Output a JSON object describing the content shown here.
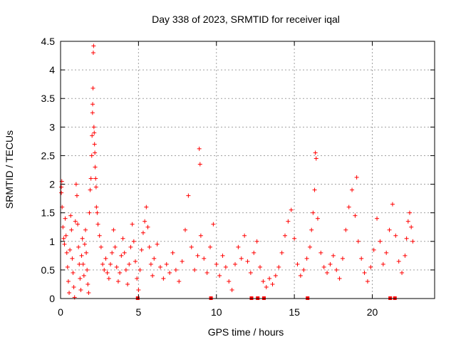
{
  "chart_data": {
    "type": "scatter",
    "title": "Day 338 of 2023, SRMTID for receiver iqal",
    "xlabel": "GPS time / hours",
    "ylabel": "SRMTID / TECUs",
    "xlim": [
      0,
      24
    ],
    "ylim": [
      0,
      4.5
    ],
    "xticks": [
      "0",
      "5",
      "10",
      "15",
      "20"
    ],
    "xtick_values": [
      0,
      5,
      10,
      15,
      20
    ],
    "yticks": [
      "0",
      "0.5",
      "1",
      "1.5",
      "2",
      "2.5",
      "3",
      "3.5",
      "4",
      "4.5"
    ],
    "ytick_values": [
      0,
      0.5,
      1,
      1.5,
      2,
      2.5,
      3,
      3.5,
      4,
      4.5
    ],
    "grid": true,
    "marker": "+",
    "color": "#ff0000",
    "series": [
      {
        "name": "SRMTID",
        "points": [
          [
            0.05,
            1.95
          ],
          [
            0.05,
            1.85
          ],
          [
            0.08,
            2.05
          ],
          [
            0.1,
            1.6
          ],
          [
            0.15,
            1.25
          ],
          [
            0.2,
            1.05
          ],
          [
            0.25,
            0.95
          ],
          [
            0.3,
            1.4
          ],
          [
            0.35,
            1.1
          ],
          [
            0.4,
            0.8
          ],
          [
            0.45,
            0.55
          ],
          [
            0.5,
            0.3
          ],
          [
            0.55,
            0.1
          ],
          [
            0.6,
            0.85
          ],
          [
            0.65,
            1.45
          ],
          [
            0.7,
            1.2
          ],
          [
            0.75,
            0.7
          ],
          [
            0.8,
            0.45
          ],
          [
            0.85,
            0.2
          ],
          [
            0.9,
            0.02
          ],
          [
            0.95,
            1.35
          ],
          [
            1.0,
            2.0
          ],
          [
            1.05,
            1.8
          ],
          [
            1.1,
            1.3
          ],
          [
            1.15,
            0.9
          ],
          [
            1.2,
            0.6
          ],
          [
            1.25,
            0.35
          ],
          [
            1.3,
            0.15
          ],
          [
            1.35,
            0.75
          ],
          [
            1.4,
            1.05
          ],
          [
            1.45,
            0.6
          ],
          [
            1.5,
            0.4
          ],
          [
            1.55,
            0.95
          ],
          [
            1.6,
            1.2
          ],
          [
            1.65,
            0.8
          ],
          [
            1.7,
            0.5
          ],
          [
            1.75,
            0.25
          ],
          [
            1.8,
            0.1
          ],
          [
            1.85,
            1.5
          ],
          [
            1.9,
            1.9
          ],
          [
            1.95,
            2.1
          ],
          [
            2.0,
            2.5
          ],
          [
            2.02,
            2.85
          ],
          [
            2.05,
            3.25
          ],
          [
            2.06,
            3.4
          ],
          [
            2.08,
            3.68
          ],
          [
            2.1,
            4.3
          ],
          [
            2.12,
            4.42
          ],
          [
            2.14,
            3.0
          ],
          [
            2.16,
            2.9
          ],
          [
            2.18,
            2.7
          ],
          [
            2.2,
            2.55
          ],
          [
            2.22,
            2.3
          ],
          [
            2.25,
            2.1
          ],
          [
            2.28,
            1.95
          ],
          [
            2.3,
            1.6
          ],
          [
            2.35,
            1.5
          ],
          [
            2.4,
            1.3
          ],
          [
            2.5,
            1.1
          ],
          [
            2.6,
            0.9
          ],
          [
            2.7,
            0.6
          ],
          [
            2.8,
            0.5
          ],
          [
            2.9,
            0.7
          ],
          [
            3.0,
            0.45
          ],
          [
            3.1,
            0.35
          ],
          [
            3.2,
            0.6
          ],
          [
            3.3,
            0.8
          ],
          [
            3.4,
            1.2
          ],
          [
            3.5,
            0.9
          ],
          [
            3.6,
            0.55
          ],
          [
            3.7,
            0.3
          ],
          [
            3.8,
            0.45
          ],
          [
            3.9,
            0.75
          ],
          [
            4.0,
            1.05
          ],
          [
            4.1,
            0.8
          ],
          [
            4.2,
            0.5
          ],
          [
            4.3,
            0.25
          ],
          [
            4.4,
            0.6
          ],
          [
            4.5,
            0.9
          ],
          [
            4.6,
            1.3
          ],
          [
            4.7,
            1.0
          ],
          [
            4.8,
            0.65
          ],
          [
            4.9,
            0.35
          ],
          [
            5.0,
            0.15
          ],
          [
            5.1,
            0.5
          ],
          [
            5.2,
            0.85
          ],
          [
            5.3,
            1.15
          ],
          [
            5.4,
            1.35
          ],
          [
            5.5,
            1.6
          ],
          [
            5.6,
            1.25
          ],
          [
            5.7,
            0.9
          ],
          [
            5.8,
            0.6
          ],
          [
            5.9,
            0.4
          ],
          [
            6.0,
            0.7
          ],
          [
            6.2,
            0.95
          ],
          [
            6.4,
            0.55
          ],
          [
            6.6,
            0.35
          ],
          [
            6.8,
            0.6
          ],
          [
            7.0,
            0.45
          ],
          [
            7.2,
            0.8
          ],
          [
            7.4,
            0.5
          ],
          [
            7.6,
            0.3
          ],
          [
            7.8,
            0.65
          ],
          [
            8.0,
            1.2
          ],
          [
            8.2,
            1.8
          ],
          [
            8.4,
            0.9
          ],
          [
            8.6,
            0.5
          ],
          [
            8.8,
            0.75
          ],
          [
            8.9,
            2.62
          ],
          [
            8.95,
            2.35
          ],
          [
            9.0,
            1.1
          ],
          [
            9.2,
            0.7
          ],
          [
            9.4,
            0.45
          ],
          [
            9.6,
            0.9
          ],
          [
            9.8,
            1.3
          ],
          [
            10.0,
            0.6
          ],
          [
            10.2,
            0.4
          ],
          [
            10.4,
            0.75
          ],
          [
            10.6,
            0.55
          ],
          [
            10.8,
            0.3
          ],
          [
            11.0,
            0.15
          ],
          [
            11.2,
            0.6
          ],
          [
            11.4,
            0.9
          ],
          [
            11.6,
            0.7
          ],
          [
            11.8,
            1.1
          ],
          [
            12.0,
            0.65
          ],
          [
            12.2,
            0.45
          ],
          [
            12.4,
            0.8
          ],
          [
            12.6,
            1.0
          ],
          [
            12.8,
            0.55
          ],
          [
            13.0,
            0.3
          ],
          [
            13.2,
            0.2
          ],
          [
            13.4,
            0.35
          ],
          [
            13.6,
            0.25
          ],
          [
            13.8,
            0.4
          ],
          [
            14.0,
            0.55
          ],
          [
            14.2,
            0.8
          ],
          [
            14.4,
            1.1
          ],
          [
            14.6,
            1.35
          ],
          [
            14.8,
            1.55
          ],
          [
            15.0,
            1.05
          ],
          [
            15.2,
            0.6
          ],
          [
            15.4,
            0.4
          ],
          [
            15.6,
            0.5
          ],
          [
            15.8,
            0.7
          ],
          [
            16.0,
            0.9
          ],
          [
            16.1,
            1.2
          ],
          [
            16.2,
            1.5
          ],
          [
            16.3,
            1.9
          ],
          [
            16.35,
            2.55
          ],
          [
            16.4,
            2.45
          ],
          [
            16.5,
            1.4
          ],
          [
            16.7,
            0.8
          ],
          [
            16.9,
            0.55
          ],
          [
            17.1,
            0.45
          ],
          [
            17.3,
            0.6
          ],
          [
            17.5,
            0.75
          ],
          [
            17.7,
            0.5
          ],
          [
            17.9,
            0.35
          ],
          [
            18.1,
            0.7
          ],
          [
            18.3,
            1.2
          ],
          [
            18.5,
            1.6
          ],
          [
            18.7,
            1.9
          ],
          [
            18.9,
            1.45
          ],
          [
            19.0,
            2.12
          ],
          [
            19.1,
            1.0
          ],
          [
            19.3,
            0.7
          ],
          [
            19.5,
            0.45
          ],
          [
            19.7,
            0.3
          ],
          [
            19.9,
            0.55
          ],
          [
            20.1,
            0.85
          ],
          [
            20.3,
            1.4
          ],
          [
            20.5,
            1.0
          ],
          [
            20.7,
            0.6
          ],
          [
            20.9,
            0.8
          ],
          [
            21.1,
            1.2
          ],
          [
            21.3,
            1.65
          ],
          [
            21.5,
            1.1
          ],
          [
            21.7,
            0.65
          ],
          [
            21.9,
            0.45
          ],
          [
            22.1,
            0.75
          ],
          [
            22.2,
            1.05
          ],
          [
            22.3,
            1.35
          ],
          [
            22.4,
            1.5
          ],
          [
            22.5,
            1.25
          ],
          [
            22.6,
            1.0
          ]
        ],
        "zero_gaps": [
          4.95,
          9.65,
          12.25,
          12.65,
          13.05,
          15.85,
          21.15,
          21.45
        ]
      }
    ]
  }
}
